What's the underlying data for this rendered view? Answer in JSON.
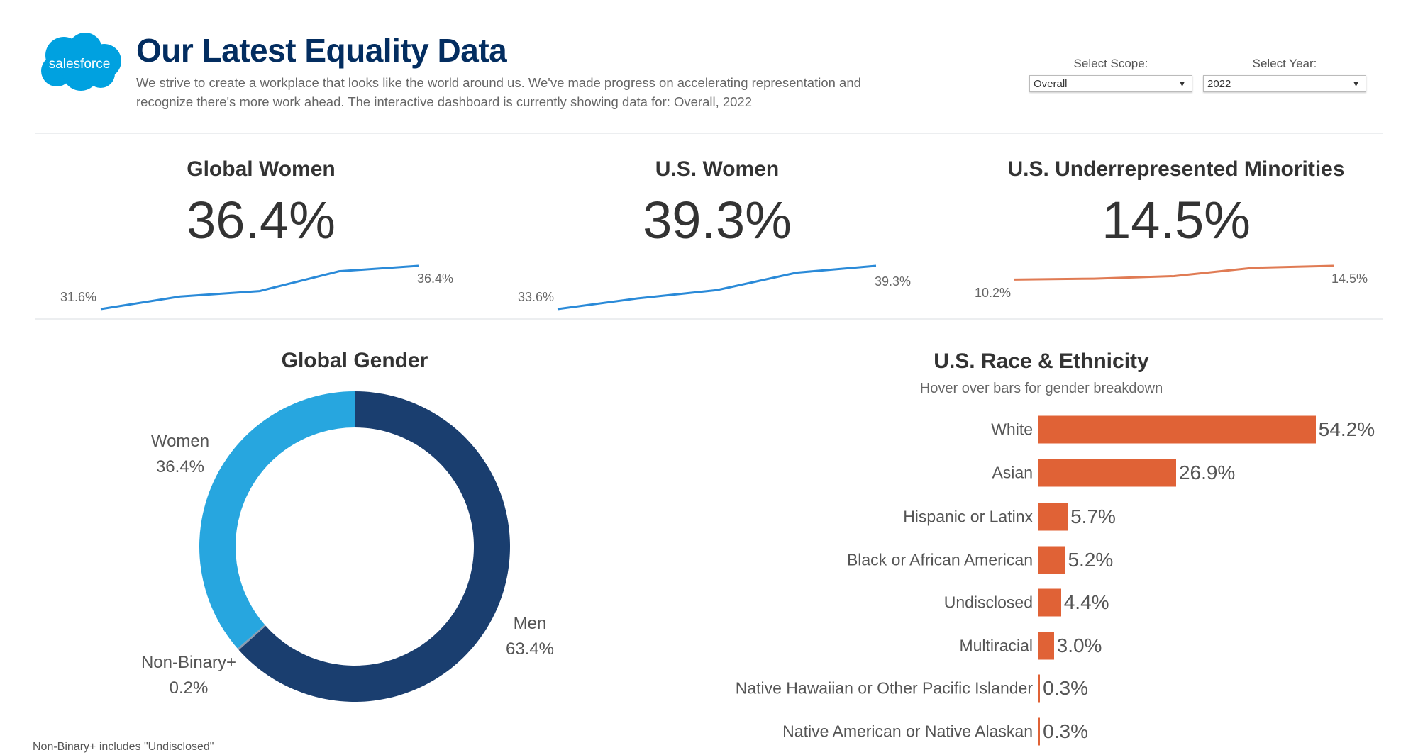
{
  "header": {
    "logo_text": "salesforce",
    "title": "Our Latest Equality Data",
    "subtitle_line1": "We strive to create a workplace that looks like the world around us. We've made progress on accelerating representation and",
    "subtitle_line2": "recognize there's more work ahead. The interactive dashboard is currently showing data for: Overall, 2022"
  },
  "filters": {
    "scope": {
      "label": "Select Scope:",
      "value": "Overall"
    },
    "year": {
      "label": "Select Year:",
      "value": "2022"
    }
  },
  "colors": {
    "brand": "#00a1e0",
    "title": "#032d60",
    "blue_line": "#2a8ad8",
    "orange": "#e06236",
    "women": "#27a6df",
    "men": "#1a3e6f"
  },
  "kpis": [
    {
      "title": "Global Women",
      "value": "36.4%",
      "start_label": "31.6%",
      "end_label": "36.4%"
    },
    {
      "title": "U.S. Women",
      "value": "39.3%",
      "start_label": "33.6%",
      "end_label": "39.3%"
    },
    {
      "title": "U.S. Underrepresented Minorities",
      "value": "14.5%",
      "start_label": "10.2%",
      "end_label": "14.5%"
    }
  ],
  "chart_data": [
    {
      "type": "line",
      "values": [
        31.6,
        33.0,
        33.6,
        35.8,
        36.4
      ],
      "ylim": [
        31.6,
        36.4
      ],
      "color": "#2a8ad8"
    },
    {
      "type": "line",
      "values": [
        33.6,
        35.0,
        36.1,
        38.4,
        39.3
      ],
      "ylim": [
        33.6,
        39.3
      ],
      "color": "#2a8ad8"
    },
    {
      "type": "line",
      "values": [
        10.2,
        10.5,
        11.3,
        13.9,
        14.5
      ],
      "ylim": [
        1.0,
        14.5
      ],
      "color": "#e07b54"
    },
    {
      "type": "pie",
      "title": "Global Gender",
      "slices": [
        {
          "label": "Men",
          "value": 63.4,
          "display": "63.4%",
          "color": "#1a3e6f"
        },
        {
          "label": "Non-Binary+",
          "value": 0.2,
          "display": "0.2%",
          "color": "#8a9bb0"
        },
        {
          "label": "Women",
          "value": 36.4,
          "display": "36.4%",
          "color": "#27a6df"
        }
      ],
      "footnote": "Non-Binary+ includes \"Undisclosed\""
    },
    {
      "type": "bar",
      "title": "U.S. Race & Ethnicity",
      "subtitle": "Hover over bars for gender breakdown",
      "categories": [
        "White",
        "Asian",
        "Hispanic or Latinx",
        "Black or African American",
        "Undisclosed",
        "Multiracial",
        "Native Hawaiian or Other Pacific Islander",
        "Native American or Native Alaskan"
      ],
      "values": [
        54.2,
        26.9,
        5.7,
        5.2,
        4.4,
        3.0,
        0.3,
        0.3
      ],
      "labels": [
        "54.2%",
        "26.9%",
        "5.7%",
        "5.2%",
        "4.4%",
        "3.0%",
        "0.3%",
        "0.3%"
      ],
      "color": "#e06236"
    }
  ]
}
